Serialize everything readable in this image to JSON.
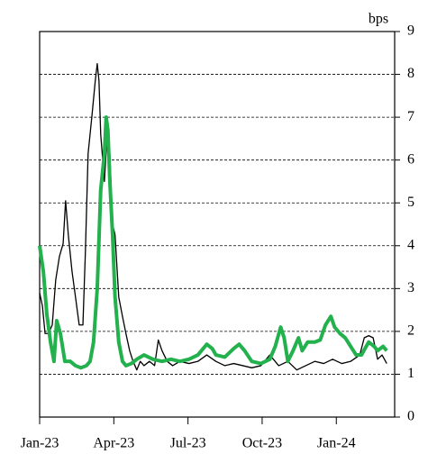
{
  "chart_data": {
    "type": "line",
    "unit_label": "bps",
    "xlim": [
      0,
      14.36
    ],
    "xticks": [
      {
        "value": 0,
        "label": "Jan-23"
      },
      {
        "value": 3,
        "label": "Apr-23"
      },
      {
        "value": 6,
        "label": "Jul-23"
      },
      {
        "value": 9,
        "label": "Oct-23"
      },
      {
        "value": 12,
        "label": "Jan-24"
      }
    ],
    "ylim": [
      0,
      9
    ],
    "yticks": [
      0,
      1,
      2,
      3,
      4,
      5,
      6,
      7,
      8,
      9
    ],
    "grid": true,
    "y_axis_side": "right",
    "series": [
      {
        "color": "#000000",
        "width": 1.3,
        "x": [
          0,
          0.11,
          0.22,
          0.36,
          0.51,
          0.65,
          0.8,
          0.95,
          1.05,
          1.16,
          1.31,
          1.45,
          1.6,
          1.75,
          1.85,
          1.96,
          2.11,
          2.25,
          2.33,
          2.4,
          2.47,
          2.62,
          2.76,
          2.84,
          2.95,
          3.05,
          3.2,
          3.35,
          3.49,
          3.64,
          3.78,
          3.93,
          4.07,
          4.22,
          4.44,
          4.65,
          4.8,
          4.95,
          5.16,
          5.38,
          5.67,
          6.04,
          6.4,
          6.76,
          7.13,
          7.49,
          7.85,
          8.22,
          8.58,
          8.95,
          9.31,
          9.67,
          10.04,
          10.4,
          10.76,
          11.13,
          11.49,
          11.85,
          12.22,
          12.58,
          12.95,
          13.13,
          13.31,
          13.49,
          13.67,
          13.85,
          14.04
        ],
        "values": [
          2.9,
          2.6,
          1.95,
          1.95,
          2.15,
          3.2,
          3.75,
          4.05,
          5.05,
          4.25,
          3.4,
          2.8,
          2.15,
          2.15,
          3.85,
          6.15,
          7.0,
          7.85,
          8.25,
          7.85,
          6.6,
          5.5,
          6.9,
          6.15,
          4.5,
          4.25,
          2.8,
          2.35,
          1.95,
          1.55,
          1.3,
          1.1,
          1.3,
          1.2,
          1.3,
          1.2,
          1.8,
          1.55,
          1.3,
          1.2,
          1.3,
          1.25,
          1.3,
          1.45,
          1.3,
          1.2,
          1.25,
          1.2,
          1.15,
          1.2,
          1.45,
          1.2,
          1.3,
          1.1,
          1.2,
          1.3,
          1.25,
          1.35,
          1.25,
          1.3,
          1.45,
          1.85,
          1.9,
          1.85,
          1.35,
          1.45,
          1.25
        ]
      },
      {
        "color": "#22b14c",
        "width": 4,
        "x": [
          0,
          0.15,
          0.29,
          0.44,
          0.58,
          0.69,
          0.84,
          1.02,
          1.24,
          1.45,
          1.67,
          1.89,
          2.04,
          2.18,
          2.33,
          2.47,
          2.62,
          2.69,
          2.76,
          2.84,
          2.95,
          3.05,
          3.2,
          3.35,
          3.49,
          3.71,
          3.93,
          4.22,
          4.58,
          4.95,
          5.31,
          5.67,
          6.04,
          6.4,
          6.76,
          6.98,
          7.13,
          7.49,
          7.85,
          8.07,
          8.29,
          8.58,
          8.95,
          9.31,
          9.53,
          9.75,
          9.89,
          10.04,
          10.25,
          10.47,
          10.62,
          10.84,
          11.13,
          11.35,
          11.56,
          11.78,
          11.93,
          12.15,
          12.36,
          12.58,
          12.8,
          13.02,
          13.16,
          13.31,
          13.53,
          13.67,
          13.89,
          14.04
        ],
        "values": [
          4.0,
          3.4,
          2.4,
          1.75,
          1.3,
          2.25,
          1.95,
          1.3,
          1.3,
          1.2,
          1.15,
          1.2,
          1.3,
          1.75,
          3.0,
          5.3,
          6.15,
          7.0,
          6.7,
          5.5,
          4.25,
          2.8,
          1.75,
          1.3,
          1.2,
          1.25,
          1.35,
          1.45,
          1.35,
          1.3,
          1.35,
          1.3,
          1.35,
          1.45,
          1.7,
          1.6,
          1.45,
          1.4,
          1.6,
          1.7,
          1.55,
          1.3,
          1.25,
          1.35,
          1.65,
          2.1,
          1.85,
          1.3,
          1.55,
          1.85,
          1.55,
          1.75,
          1.75,
          1.8,
          2.15,
          2.35,
          2.1,
          1.95,
          1.85,
          1.65,
          1.45,
          1.45,
          1.6,
          1.75,
          1.65,
          1.55,
          1.65,
          1.55
        ]
      }
    ]
  }
}
